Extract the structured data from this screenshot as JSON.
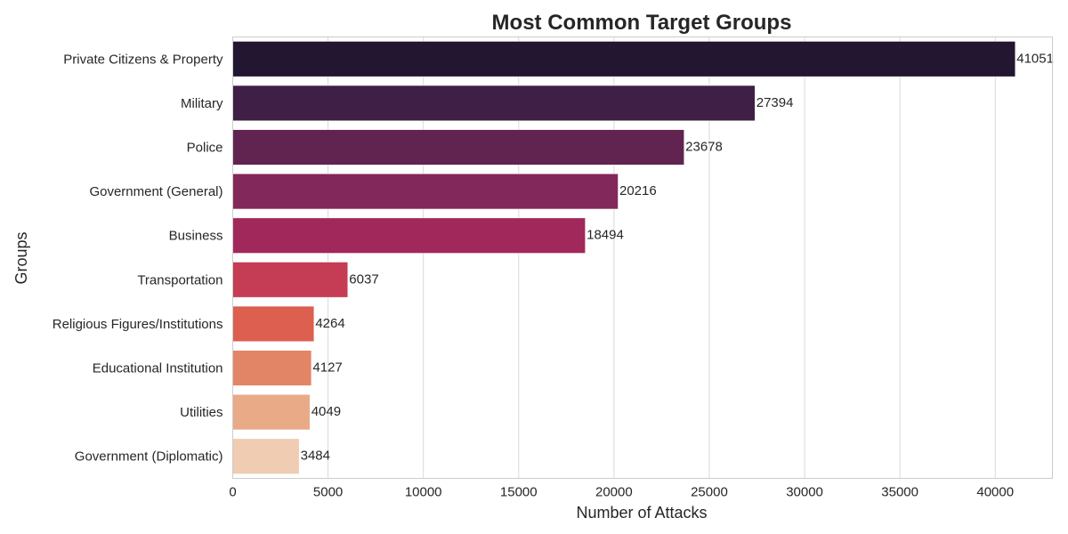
{
  "chart_data": {
    "type": "bar",
    "orientation": "horizontal",
    "title": "Most Common Target Groups",
    "xlabel": "Number of Attacks",
    "ylabel": "Groups",
    "xlim": [
      0,
      43000
    ],
    "xticks": [
      0,
      5000,
      10000,
      15000,
      20000,
      25000,
      30000,
      35000,
      40000
    ],
    "grid": true,
    "categories": [
      "Private Citizens & Property",
      "Military",
      "Police",
      "Government (General)",
      "Business",
      "Transportation",
      "Religious Figures/Institutions",
      "Educational Institution",
      "Utilities",
      "Government (Diplomatic)"
    ],
    "values": [
      41051,
      27394,
      23678,
      20216,
      18494,
      6037,
      4264,
      4127,
      4049,
      3484
    ],
    "colors": [
      "#221631",
      "#3f1f45",
      "#612451",
      "#83285a",
      "#a1285b",
      "#c53d55",
      "#dc5f50",
      "#e28566",
      "#e8aa87",
      "#efccb2"
    ]
  }
}
